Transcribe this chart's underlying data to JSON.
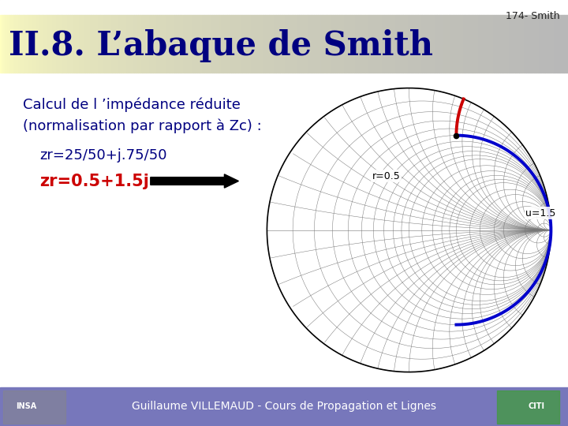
{
  "slide_bg": "#f0f0f0",
  "title_text": "II.8. L’abaque de Smith",
  "title_color": "#000080",
  "title_fontsize": 30,
  "page_num": "174- Smith",
  "page_num_fontsize": 9,
  "body_text_line1": "Calcul de l ’impédance réduite",
  "body_text_line2": "(normalisation par rapport à Zc) :",
  "body_text_color": "#000080",
  "body_fontsize": 13,
  "formula1_text": "zr=25/50+j.75/50",
  "formula1_color": "#000080",
  "formula1_fontsize": 13,
  "formula2_text": "zr=0.5+1.5j",
  "formula2_color": "#cc0000",
  "formula2_fontsize": 14,
  "footer_text": "Guillaume VILLEMAUD - Cours de Propagation et Lignes",
  "footer_text_color": "#ffffff",
  "footer_fontsize": 10,
  "blue_arc_color": "#0000cc",
  "red_arc_color": "#cc0000",
  "label_r05_text": "r=0.5",
  "label_u15_text": "u=1.5",
  "label_fontsize": 8
}
